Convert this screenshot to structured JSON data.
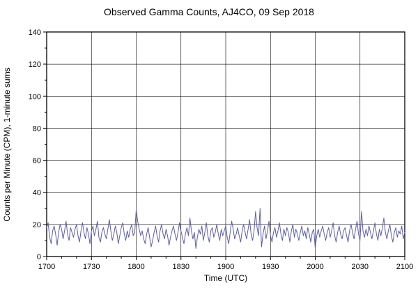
{
  "chart_data": {
    "type": "line",
    "title": "Observed Gamma Counts, AJ4CO, 09 Sep 2018",
    "xlabel": "Time (UTC)",
    "ylabel": "Counts per Minute (CPM), 1-minute sums",
    "x_tick_labels": [
      "1700",
      "1730",
      "1800",
      "1830",
      "1900",
      "1930",
      "2000",
      "2030",
      "2100"
    ],
    "y_ticks": [
      0,
      20,
      40,
      60,
      80,
      100,
      120,
      140
    ],
    "ylim": [
      0,
      140
    ],
    "x_range_minutes": [
      0,
      240
    ],
    "grid": true,
    "legend": "none",
    "line_color": "#5c5caa",
    "values": [
      18,
      21,
      12,
      8,
      16,
      19,
      14,
      7,
      15,
      20,
      17,
      11,
      16,
      22,
      14,
      10,
      18,
      15,
      12,
      17,
      20,
      13,
      9,
      16,
      21,
      15,
      11,
      18,
      14,
      8,
      16,
      19,
      13,
      17,
      22,
      12,
      9,
      15,
      18,
      14,
      11,
      17,
      23,
      16,
      10,
      14,
      19,
      15,
      8,
      13,
      18,
      21,
      14,
      10,
      16,
      12,
      17,
      20,
      13,
      15,
      29,
      22,
      17,
      13,
      16,
      11,
      8,
      14,
      18,
      12,
      6,
      10,
      15,
      19,
      13,
      9,
      16,
      20,
      14,
      11,
      17,
      13,
      7,
      12,
      16,
      19,
      14,
      10,
      15,
      21,
      16,
      12,
      8,
      14,
      18,
      13,
      24,
      16,
      11,
      15,
      5,
      12,
      17,
      14,
      19,
      10,
      15,
      21,
      13,
      9,
      16,
      18,
      12,
      15,
      20,
      14,
      10,
      17,
      13,
      16,
      19,
      12,
      8,
      15,
      22,
      17,
      11,
      14,
      18,
      13,
      9,
      16,
      20,
      15,
      11,
      17,
      23,
      14,
      10,
      16,
      28,
      18,
      13,
      30,
      6,
      14,
      19,
      11,
      16,
      22,
      13,
      9,
      15,
      18,
      12,
      16,
      21,
      14,
      10,
      17,
      13,
      18,
      15,
      9,
      16,
      20,
      12,
      17,
      14,
      10,
      15,
      19,
      13,
      16,
      11,
      18,
      14,
      9,
      15,
      17,
      5,
      13,
      17,
      12,
      16,
      19,
      14,
      10,
      15,
      18,
      12,
      16,
      21,
      13,
      9,
      15,
      19,
      14,
      11,
      16,
      18,
      13,
      9,
      16,
      20,
      15,
      11,
      17,
      22,
      14,
      10,
      28,
      16,
      12,
      17,
      13,
      19,
      15,
      11,
      16,
      21,
      14,
      10,
      17,
      13,
      18,
      24,
      15,
      11,
      16,
      20,
      13,
      9,
      15,
      18,
      12,
      16,
      14,
      19,
      11,
      15
    ]
  }
}
